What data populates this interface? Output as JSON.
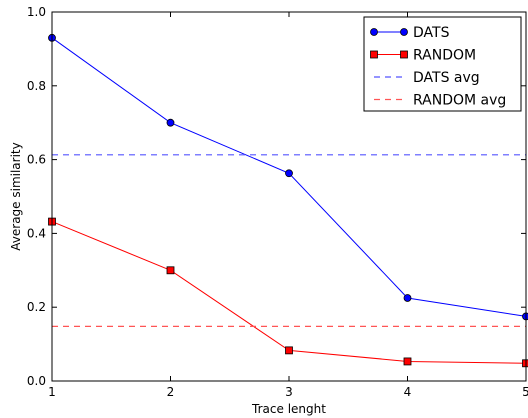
{
  "chart_data": {
    "type": "line",
    "xlabel": "Trace lenght",
    "ylabel": "Average similarity",
    "x": [
      1,
      2,
      3,
      4,
      5
    ],
    "xlim": [
      1,
      5
    ],
    "ylim": [
      0.0,
      1.0
    ],
    "xticks": [
      "1",
      "2",
      "3",
      "4",
      "5"
    ],
    "yticks": [
      "0.0",
      "0.2",
      "0.4",
      "0.6",
      "0.8",
      "1.0"
    ],
    "grid": false,
    "legend_position": "top-right",
    "series": [
      {
        "name": "DATS",
        "values": [
          0.93,
          0.7,
          0.563,
          0.225,
          0.175
        ],
        "color": "#0000ff",
        "marker": "circle",
        "style": "solid"
      },
      {
        "name": "RANDOM",
        "values": [
          0.432,
          0.3,
          0.083,
          0.053,
          0.048
        ],
        "color": "#ff0000",
        "marker": "square",
        "style": "solid"
      },
      {
        "name": "DATS avg",
        "constant": 0.613,
        "color": "#5555ff",
        "style": "dashed"
      },
      {
        "name": "RANDOM avg",
        "constant": 0.148,
        "color": "#ff5555",
        "style": "dashed"
      }
    ]
  }
}
